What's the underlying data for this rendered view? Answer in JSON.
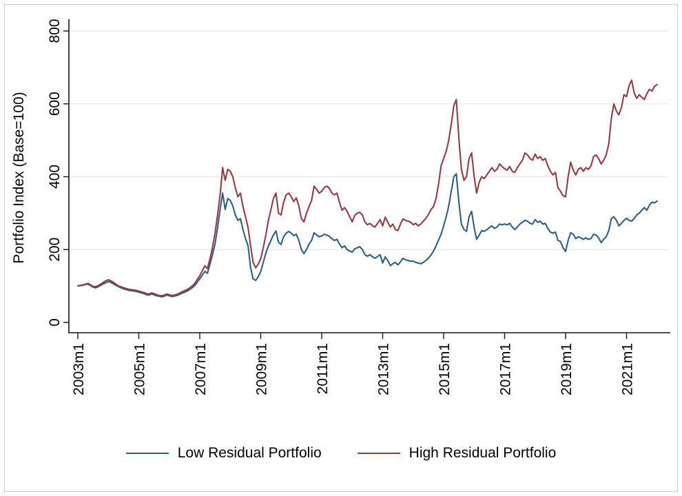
{
  "figure": {
    "background": "#ffffff",
    "frame_color": "#c9d0d0",
    "legend": [
      {
        "label": "Low Residual Portfolio",
        "color": "#2e5f80"
      },
      {
        "label": "High Residual Portfolio",
        "color": "#943b42"
      }
    ]
  },
  "chart_data": {
    "type": "line",
    "title": "",
    "ylabel": "Portfolio Index (Base=100)",
    "xlabel": "",
    "ylim": [
      0,
      800
    ],
    "yticks": [
      0,
      200,
      400,
      600,
      800
    ],
    "grid": "horizontal gridlines at 200/400/600/800, very light",
    "legend_position": "bottom center",
    "x_unit": "month",
    "x_start": "2003m1",
    "x_end": "2022m1",
    "x_tick_interval_months": 24,
    "x_tick_labels": [
      "2003m1",
      "2005m1",
      "2007m1",
      "2009m1",
      "2011m1",
      "2013m1",
      "2015m1",
      "2017m1",
      "2019m1",
      "2021m1"
    ],
    "series": [
      {
        "name": "Low Residual Portfolio",
        "color": "#2e5f80",
        "values": [
          100,
          101,
          102,
          104,
          105,
          101,
          97,
          95,
          98,
          102,
          106,
          109,
          112,
          110,
          106,
          102,
          98,
          95,
          92,
          90,
          88,
          87,
          86,
          85,
          83,
          81,
          79,
          76,
          75,
          78,
          76,
          73,
          72,
          70,
          72,
          75,
          73,
          71,
          72,
          74,
          77,
          80,
          83,
          86,
          90,
          95,
          101,
          110,
          120,
          130,
          140,
          135,
          160,
          185,
          215,
          260,
          310,
          355,
          310,
          340,
          335,
          320,
          295,
          280,
          285,
          255,
          230,
          210,
          150,
          120,
          115,
          125,
          140,
          165,
          190,
          210,
          225,
          240,
          251,
          220,
          214,
          235,
          245,
          250,
          245,
          238,
          242,
          225,
          200,
          189,
          200,
          215,
          225,
          246,
          240,
          235,
          237,
          242,
          240,
          236,
          230,
          225,
          228,
          215,
          205,
          210,
          200,
          196,
          193,
          202,
          205,
          208,
          200,
          186,
          182,
          186,
          180,
          176,
          181,
          186,
          163,
          180,
          170,
          156,
          161,
          165,
          158,
          166,
          176,
          172,
          170,
          168,
          168,
          165,
          163,
          161,
          165,
          170,
          176,
          185,
          196,
          210,
          226,
          242,
          265,
          290,
          320,
          360,
          400,
          408,
          330,
          270,
          255,
          250,
          290,
          305,
          260,
          228,
          240,
          252,
          250,
          255,
          260,
          265,
          258,
          262,
          270,
          268,
          270,
          268,
          272,
          262,
          255,
          262,
          270,
          275,
          280,
          278,
          272,
          270,
          282,
          275,
          278,
          270,
          272,
          258,
          248,
          245,
          248,
          225,
          222,
          205,
          195,
          225,
          246,
          242,
          230,
          235,
          232,
          228,
          232,
          228,
          230,
          242,
          240,
          232,
          219,
          228,
          235,
          252,
          285,
          290,
          280,
          265,
          272,
          280,
          286,
          280,
          278,
          285,
          295,
          300,
          308,
          315,
          308,
          322,
          330,
          328,
          333
        ]
      },
      {
        "name": "High Residual Portfolio",
        "color": "#943b42",
        "values": [
          100,
          102,
          103,
          105,
          107,
          103,
          99,
          98,
          101,
          105,
          110,
          114,
          117,
          114,
          110,
          105,
          100,
          98,
          95,
          93,
          91,
          90,
          89,
          88,
          86,
          84,
          82,
          79,
          78,
          81,
          79,
          76,
          74,
          73,
          75,
          78,
          76,
          74,
          75,
          77,
          80,
          84,
          87,
          90,
          95,
          100,
          107,
          118,
          128,
          142,
          155,
          148,
          175,
          205,
          245,
          295,
          350,
          425,
          390,
          420,
          415,
          400,
          370,
          345,
          355,
          318,
          290,
          260,
          210,
          165,
          150,
          160,
          175,
          205,
          240,
          280,
          310,
          340,
          355,
          300,
          295,
          330,
          350,
          355,
          345,
          332,
          342,
          320,
          285,
          276,
          300,
          318,
          335,
          374,
          365,
          355,
          360,
          370,
          374,
          368,
          355,
          350,
          355,
          330,
          308,
          315,
          305,
          290,
          276,
          294,
          300,
          302,
          295,
          276,
          268,
          272,
          265,
          262,
          272,
          282,
          265,
          289,
          275,
          262,
          270,
          255,
          252,
          270,
          284,
          280,
          278,
          275,
          268,
          272,
          265,
          270,
          278,
          286,
          296,
          310,
          318,
          340,
          380,
          430,
          450,
          470,
          500,
          545,
          595,
          612,
          505,
          420,
          390,
          400,
          450,
          465,
          400,
          355,
          385,
          400,
          395,
          405,
          415,
          425,
          415,
          420,
          435,
          428,
          422,
          418,
          428,
          415,
          412,
          425,
          435,
          445,
          465,
          460,
          450,
          445,
          462,
          450,
          455,
          445,
          450,
          430,
          415,
          405,
          412,
          370,
          360,
          348,
          345,
          400,
          440,
          418,
          405,
          420,
          425,
          415,
          425,
          420,
          430,
          455,
          460,
          450,
          435,
          445,
          460,
          490,
          560,
          600,
          580,
          570,
          590,
          625,
          620,
          650,
          665,
          630,
          615,
          625,
          618,
          612,
          628,
          640,
          635,
          648,
          653
        ]
      }
    ]
  }
}
